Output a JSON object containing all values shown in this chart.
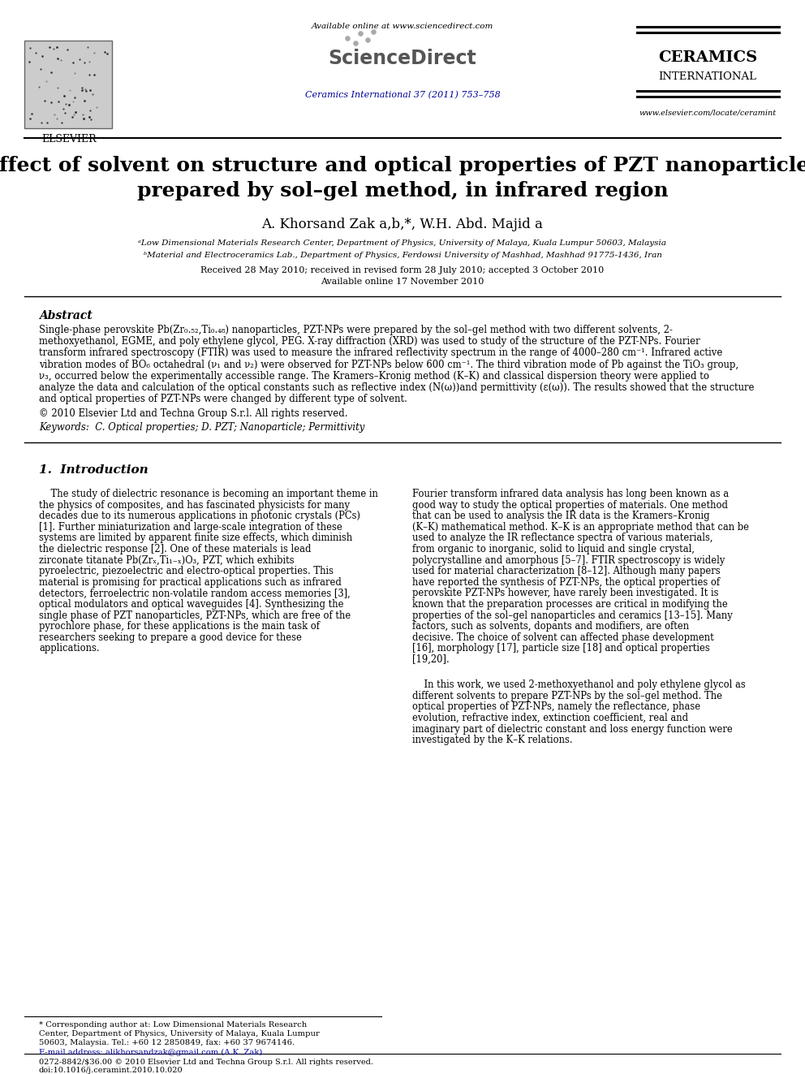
{
  "bg_color": "#ffffff",
  "header": {
    "available_online": "Available online at www.sciencedirect.com",
    "journal_ref": "Ceramics International 37 (2011) 753–758",
    "journal_name_line1": "CERAMICS",
    "journal_name_line2": "INTERNATIONAL",
    "website": "www.elsevier.com/locate/ceramint",
    "elsevier_label": "ELSEVIER"
  },
  "title": "Effect of solvent on structure and optical properties of PZT nanoparticles\nprepared by sol–gel method, in infrared region",
  "authors": "A. Khorsand Zak a,b,*, W.H. Abd. Majid a",
  "affil_a": "ᵃLow Dimensional Materials Research Center, Department of Physics, University of Malaya, Kuala Lumpur 50603, Malaysia",
  "affil_b": "ᵇMaterial and Electroceramics Lab., Department of Physics, Ferdowsi University of Mashhad, Mashhad 91775-1436, Iran",
  "received": "Received 28 May 2010; received in revised form 28 July 2010; accepted 3 October 2010",
  "available": "Available online 17 November 2010",
  "abstract_label": "Abstract",
  "copyright": "© 2010 Elsevier Ltd and Techna Group S.r.l. All rights reserved.",
  "keywords": "Keywords:  C. Optical properties; D. PZT; Nanoparticle; Permittivity",
  "section1_title": "1.  Introduction",
  "intro_col1": "The study of dielectric resonance is becoming an important theme in the physics of composites, and has fascinated physicists for many decades due to its numerous applications in photonic crystals (PCs) [1]. Further miniaturization and large-scale integration of these systems are limited by apparent finite size effects, which diminish the dielectric response [2]. One of these materials is lead zirconate titanate Pb(Zrₓ,Ti₁₋ₓ)O₃, PZT, which exhibits pyroelectric, piezoelectric and electro-optical properties. This material is promising for practical applications such as infrared detectors, ferroelectric non-volatile random access memories [3], optical modulators and optical waveguides [4]. Synthesizing the single phase of PZT nanoparticles, PZT-NPs, which are free of the pyrochlore phase, for these applications is the main task of researchers seeking to prepare a good device for these applications.",
  "intro_col2": "Fourier transform infrared data analysis has long been known as a good way to study the optical properties of materials. One method that can be used to analysis the IR data is the Kramers–Kronig (K–K) mathematical method. K–K is an appropriate method that can be used to analyze the IR reflectance spectra of various materials, from organic to inorganic, solid to liquid and single crystal, polycrystalline and amorphous [5–7]. FTIR spectroscopy is widely used for material characterization [8–12]. Although many papers have reported the synthesis of PZT-NPs, the optical properties of perovskite PZT-NPs however, have rarely been investigated. It is known that the preparation processes are critical in modifying the properties of the sol–gel nanoparticles and ceramics [13–15]. Many factors, such as solvents, dopants and modifiers, are often decisive. The choice of solvent can affected phase development [16], morphology [17], particle size [18] and optical properties [19,20].",
  "intro_col2b": "In this work, we used 2-methoxyethanol and poly ethylene glycol as different solvents to prepare PZT-NPs by the sol–gel method. The optical properties of PZT-NPs, namely the reflectance, phase evolution, refractive index, extinction coefficient, real and imaginary part of dielectric constant and loss energy function were investigated by the K–K relations.",
  "footnote_star": "* Corresponding author at: Low Dimensional Materials Research Center, Department of Physics, University of Malaya, Kuala Lumpur 50603, Malaysia. Tel.: +60 12 2850849, fax: +60 37 9674146.",
  "footnote_email": "E-mail address: alikhorsandzak@gmail.com (A.K. Zak).",
  "bottom_line1": "0272-8842/$36.00 © 2010 Elsevier Ltd and Techna Group S.r.l. All rights reserved.",
  "bottom_line2": "doi:10.1016/j.ceramint.2010.10.020",
  "abstract_lines": [
    "Single-phase perovskite Pb(Zr₀.₅₂,Ti₀.₄₈) nanoparticles, PZT-NPs were prepared by the sol–gel method with two different solvents, 2-",
    "methoxyethanol, EGME, and poly ethylene glycol, PEG. X-ray diffraction (XRD) was used to study of the structure of the PZT-NPs. Fourier",
    "transform infrared spectroscopy (FTIR) was used to measure the infrared reflectivity spectrum in the range of 4000–280 cm⁻¹. Infrared active",
    "vibration modes of BO₆ octahedral (ν₁ and ν₂) were observed for PZT-NPs below 600 cm⁻¹. The third vibration mode of Pb against the TiO₃ group,",
    "ν₃, occurred below the experimentally accessible range. The Kramers–Kronig method (K–K) and classical dispersion theory were applied to",
    "analyze the data and calculation of the optical constants such as reflective index (N(ω))and permittivity (ε(ω)). The results showed that the structure",
    "and optical properties of PZT-NPs were changed by different type of solvent."
  ]
}
